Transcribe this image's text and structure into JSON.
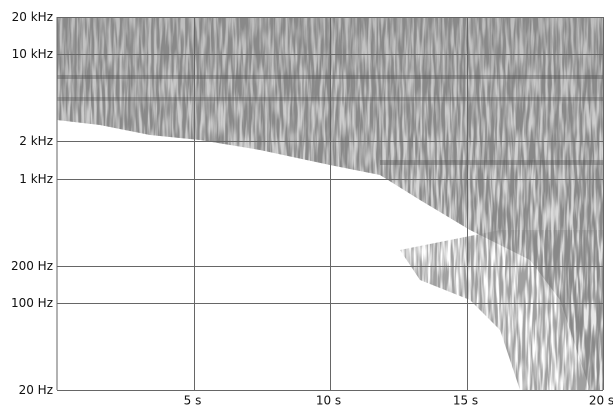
{
  "chart_data": {
    "type": "spectrogram",
    "xlim": [
      0,
      20
    ],
    "xticks": [
      {
        "value": 5,
        "label": "5 s"
      },
      {
        "value": 10,
        "label": "10 s"
      },
      {
        "value": 15,
        "label": "15 s"
      },
      {
        "value": 20,
        "label": "20 s"
      }
    ],
    "ylim": [
      20,
      20000
    ],
    "yscale": "log",
    "yticks": [
      {
        "value": 20,
        "label": "20 Hz"
      },
      {
        "value": 100,
        "label": "100 Hz"
      },
      {
        "value": 200,
        "label": "200 Hz"
      },
      {
        "value": 1000,
        "label": "1 kHz"
      },
      {
        "value": 2000,
        "label": "2 kHz"
      },
      {
        "value": 10000,
        "label": "10 kHz"
      },
      {
        "value": 20000,
        "label": "20 kHz"
      }
    ],
    "grid": true
  }
}
